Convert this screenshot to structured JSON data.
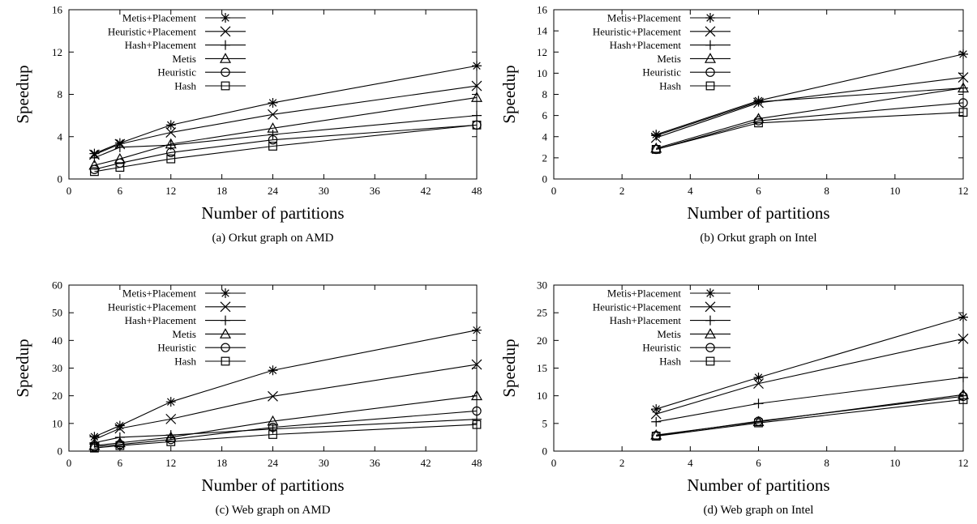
{
  "chart_data": [
    {
      "type": "line",
      "caption": "(a) Orkut graph on AMD",
      "xlabel": "Number of partitions",
      "ylabel": "Speedup",
      "xlim": [
        0,
        48
      ],
      "ylim": [
        0,
        16
      ],
      "xticks": [
        0,
        6,
        12,
        18,
        24,
        30,
        36,
        42,
        48
      ],
      "yticks": [
        0,
        4,
        8,
        12,
        16
      ],
      "x": [
        3,
        6,
        12,
        24,
        48
      ],
      "grid": false,
      "legend": "top-left",
      "series": [
        {
          "name": "Metis+Placement",
          "marker": "star",
          "values": [
            2.4,
            3.4,
            5.1,
            7.2,
            10.7
          ]
        },
        {
          "name": "Heuristic+Placement",
          "marker": "x",
          "values": [
            2.3,
            3.3,
            4.4,
            6.1,
            8.8
          ]
        },
        {
          "name": "Hash+Placement",
          "marker": "plus",
          "values": [
            2.0,
            3.0,
            3.2,
            4.2,
            6.0
          ]
        },
        {
          "name": "Metis",
          "marker": "triangle",
          "values": [
            1.3,
            1.9,
            3.3,
            4.8,
            7.7
          ]
        },
        {
          "name": "Heuristic",
          "marker": "circle",
          "values": [
            0.9,
            1.5,
            2.5,
            3.7,
            5.1
          ]
        },
        {
          "name": "Hash",
          "marker": "square",
          "values": [
            0.7,
            1.1,
            1.9,
            3.1,
            5.1
          ]
        }
      ]
    },
    {
      "type": "line",
      "caption": "(b) Orkut graph on Intel",
      "xlabel": "Number of partitions",
      "ylabel": "Speedup",
      "xlim": [
        0,
        12
      ],
      "ylim": [
        0,
        16
      ],
      "xticks": [
        0,
        2,
        4,
        6,
        8,
        10,
        12
      ],
      "yticks": [
        0,
        2,
        4,
        6,
        8,
        10,
        12,
        14,
        16
      ],
      "x": [
        3,
        6,
        12
      ],
      "grid": false,
      "legend": "top-left",
      "series": [
        {
          "name": "Metis+Placement",
          "marker": "star",
          "values": [
            4.2,
            7.4,
            11.8
          ]
        },
        {
          "name": "Heuristic+Placement",
          "marker": "x",
          "values": [
            3.9,
            7.2,
            9.6
          ]
        },
        {
          "name": "Hash+Placement",
          "marker": "plus",
          "values": [
            4.1,
            7.3,
            8.6
          ]
        },
        {
          "name": "Metis",
          "marker": "triangle",
          "values": [
            2.9,
            5.7,
            8.6
          ]
        },
        {
          "name": "Heuristic",
          "marker": "circle",
          "values": [
            2.8,
            5.5,
            7.2
          ]
        },
        {
          "name": "Hash",
          "marker": "square",
          "values": [
            2.8,
            5.3,
            6.3
          ]
        }
      ]
    },
    {
      "type": "line",
      "caption": "(c) Web graph on AMD",
      "xlabel": "Number of partitions",
      "ylabel": "Speedup",
      "xlim": [
        0,
        48
      ],
      "ylim": [
        0,
        60
      ],
      "xticks": [
        0,
        6,
        12,
        18,
        24,
        30,
        36,
        42,
        48
      ],
      "yticks": [
        0,
        10,
        20,
        30,
        40,
        50,
        60
      ],
      "x": [
        3,
        6,
        12,
        24,
        48
      ],
      "grid": false,
      "legend": "top-left",
      "series": [
        {
          "name": "Metis+Placement",
          "marker": "star",
          "values": [
            5.2,
            9.2,
            17.8,
            29.2,
            43.7
          ]
        },
        {
          "name": "Heuristic+Placement",
          "marker": "x",
          "values": [
            4.2,
            8.2,
            11.6,
            19.8,
            31.3
          ]
        },
        {
          "name": "Hash+Placement",
          "marker": "plus",
          "values": [
            3.0,
            5.0,
            5.8,
            8.0,
            11.5
          ]
        },
        {
          "name": "Metis",
          "marker": "triangle",
          "values": [
            2.0,
            3.0,
            5.0,
            10.8,
            20.0
          ]
        },
        {
          "name": "Heuristic",
          "marker": "circle",
          "values": [
            1.6,
            2.4,
            4.2,
            8.6,
            14.5
          ]
        },
        {
          "name": "Hash",
          "marker": "square",
          "values": [
            1.1,
            2.0,
            3.4,
            6.0,
            9.6
          ]
        }
      ]
    },
    {
      "type": "line",
      "caption": "(d) Web graph on Intel",
      "xlabel": "Number of partitions",
      "ylabel": "Speedup",
      "xlim": [
        0,
        12
      ],
      "ylim": [
        0,
        30
      ],
      "xticks": [
        0,
        2,
        4,
        6,
        8,
        10,
        12
      ],
      "yticks": [
        0,
        5,
        10,
        15,
        20,
        25,
        30
      ],
      "x": [
        3,
        6,
        12
      ],
      "grid": false,
      "legend": "top-left",
      "series": [
        {
          "name": "Metis+Placement",
          "marker": "star",
          "values": [
            7.6,
            13.3,
            24.2
          ]
        },
        {
          "name": "Heuristic+Placement",
          "marker": "x",
          "values": [
            6.7,
            12.2,
            20.3
          ]
        },
        {
          "name": "Hash+Placement",
          "marker": "plus",
          "values": [
            5.3,
            8.6,
            13.3
          ]
        },
        {
          "name": "Metis",
          "marker": "triangle",
          "values": [
            2.9,
            5.3,
            10.2
          ]
        },
        {
          "name": "Heuristic",
          "marker": "circle",
          "values": [
            2.8,
            5.4,
            9.9
          ]
        },
        {
          "name": "Hash",
          "marker": "square",
          "values": [
            2.7,
            5.1,
            9.3
          ]
        }
      ]
    }
  ]
}
